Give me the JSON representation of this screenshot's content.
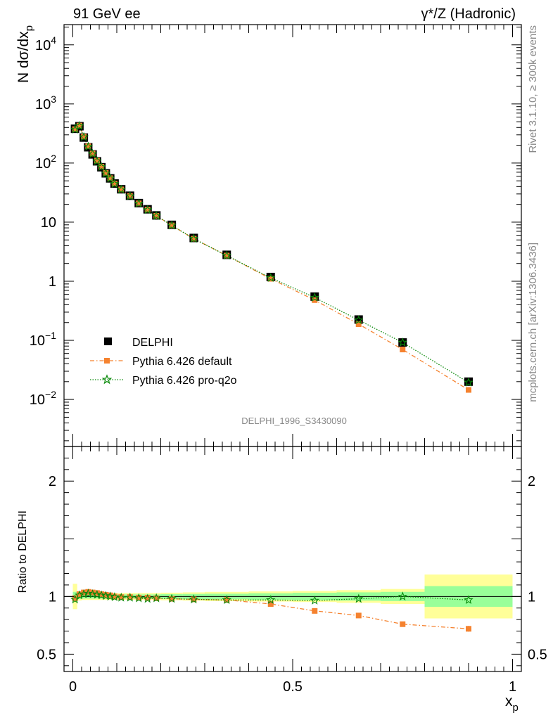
{
  "chart_data": [
    {
      "type": "scatter",
      "panel": "main",
      "title_left": "91 GeV ee",
      "title_right_prefix": "γ*/Z",
      "title_right_suffix": "(Hadronic)",
      "ylabel": "N dσ/dx_p",
      "yscale": "log",
      "ylim": [
        0.0016,
        22000
      ],
      "xlim": [
        -0.02,
        1.02
      ],
      "ytick_labels": [
        "10^-2",
        "10^-1",
        "1",
        "10",
        "10^2",
        "10^3",
        "10^4"
      ],
      "yticks": [
        0.01,
        0.1,
        1,
        10,
        100,
        1000,
        10000
      ],
      "analysis_id": "DELPHI_1996_S3430090",
      "side_label_top": "Rivet 3.1.10, ≥ 300k events",
      "side_label_bottom": "mcplots.cern.ch [arXiv:1306.3436]",
      "legend": [
        "DELPHI",
        "Pythia 6.426 default",
        "Pythia 6.426 pro-q2o"
      ],
      "series": [
        {
          "name": "DELPHI",
          "marker": "square",
          "x": [
            0.005,
            0.015,
            0.025,
            0.035,
            0.045,
            0.055,
            0.065,
            0.075,
            0.085,
            0.095,
            0.11,
            0.13,
            0.15,
            0.17,
            0.19,
            0.225,
            0.275,
            0.35,
            0.45,
            0.55,
            0.65,
            0.75,
            0.9
          ],
          "y": [
            380,
            420,
            270,
            185,
            140,
            107,
            85,
            67,
            55,
            45,
            36,
            28,
            21,
            16.5,
            13,
            9,
            5.4,
            2.8,
            1.18,
            0.55,
            0.225,
            0.092,
            0.02
          ]
        },
        {
          "name": "Pythia 6.426 default",
          "marker": "filled-square",
          "x": [
            0.005,
            0.015,
            0.025,
            0.035,
            0.045,
            0.055,
            0.065,
            0.075,
            0.085,
            0.095,
            0.11,
            0.13,
            0.15,
            0.17,
            0.19,
            0.225,
            0.275,
            0.35,
            0.45,
            0.55,
            0.65,
            0.75,
            0.9
          ],
          "y": [
            375,
            430,
            280,
            193,
            145,
            110,
            87,
            68,
            55.5,
            45,
            35.8,
            27.8,
            20.8,
            16.3,
            12.8,
            8.8,
            5.25,
            2.72,
            1.1,
            0.48,
            0.188,
            0.07,
            0.0145
          ]
        },
        {
          "name": "Pythia 6.426 pro-q2o",
          "marker": "star",
          "x": [
            0.005,
            0.015,
            0.025,
            0.035,
            0.045,
            0.055,
            0.065,
            0.075,
            0.085,
            0.095,
            0.11,
            0.13,
            0.15,
            0.17,
            0.19,
            0.225,
            0.275,
            0.35,
            0.45,
            0.55,
            0.65,
            0.75,
            0.9
          ],
          "y": [
            370,
            425,
            276,
            190,
            143,
            108,
            86,
            67,
            55,
            44.5,
            35.5,
            27.6,
            20.7,
            16.1,
            12.8,
            8.8,
            5.25,
            2.72,
            1.14,
            0.53,
            0.22,
            0.092,
            0.0194
          ]
        }
      ]
    },
    {
      "type": "line",
      "panel": "ratio",
      "ylabel": "Ratio to DELPHI",
      "xlabel": "x_p",
      "ylim": [
        0.35,
        2.3
      ],
      "xlim": [
        -0.02,
        1.02
      ],
      "ytick_labels": [
        "0.5",
        "1",
        "2"
      ],
      "yticks": [
        0.5,
        1,
        2
      ],
      "xtick_labels": [
        "0",
        "0.5",
        "1"
      ],
      "xticks": [
        0,
        0.5,
        1
      ],
      "uncertainty_bands": {
        "bins": [
          [
            0.0,
            0.01
          ],
          [
            0.01,
            0.02
          ],
          [
            0.02,
            0.03
          ],
          [
            0.03,
            0.04
          ],
          [
            0.04,
            0.05
          ],
          [
            0.05,
            0.06
          ],
          [
            0.06,
            0.07
          ],
          [
            0.07,
            0.08
          ],
          [
            0.08,
            0.09
          ],
          [
            0.09,
            0.1
          ],
          [
            0.1,
            0.12
          ],
          [
            0.12,
            0.14
          ],
          [
            0.14,
            0.16
          ],
          [
            0.16,
            0.18
          ],
          [
            0.18,
            0.2
          ],
          [
            0.2,
            0.25
          ],
          [
            0.25,
            0.3
          ],
          [
            0.3,
            0.4
          ],
          [
            0.4,
            0.5
          ],
          [
            0.5,
            0.6
          ],
          [
            0.6,
            0.7
          ],
          [
            0.7,
            0.8
          ],
          [
            0.8,
            1.0
          ]
        ],
        "stat": [
          0.04,
          0.02,
          0.018,
          0.018,
          0.018,
          0.018,
          0.018,
          0.018,
          0.018,
          0.018,
          0.018,
          0.018,
          0.018,
          0.018,
          0.018,
          0.02,
          0.022,
          0.024,
          0.028,
          0.032,
          0.036,
          0.04,
          0.09
        ],
        "total": [
          0.11,
          0.035,
          0.03,
          0.03,
          0.03,
          0.03,
          0.03,
          0.03,
          0.03,
          0.03,
          0.03,
          0.03,
          0.03,
          0.03,
          0.03,
          0.033,
          0.036,
          0.04,
          0.044,
          0.048,
          0.055,
          0.065,
          0.19
        ]
      },
      "series": [
        {
          "name": "Pythia 6.426 default",
          "x": [
            0.005,
            0.015,
            0.025,
            0.035,
            0.045,
            0.055,
            0.065,
            0.075,
            0.085,
            0.095,
            0.11,
            0.13,
            0.15,
            0.17,
            0.19,
            0.225,
            0.275,
            0.35,
            0.45,
            0.55,
            0.65,
            0.75,
            0.9
          ],
          "y": [
            0.985,
            1.02,
            1.035,
            1.04,
            1.035,
            1.03,
            1.02,
            1.015,
            1.01,
            1.0,
            0.995,
            0.995,
            0.99,
            0.99,
            0.985,
            0.98,
            0.975,
            0.97,
            0.935,
            0.875,
            0.835,
            0.76,
            0.72
          ],
          "yerr": [
            0,
            0,
            0,
            0,
            0,
            0,
            0,
            0,
            0,
            0,
            0,
            0,
            0,
            0,
            0,
            0,
            0,
            0,
            0,
            0,
            0,
            0.012,
            0.025
          ]
        },
        {
          "name": "Pythia 6.426 pro-q2o",
          "x": [
            0.005,
            0.015,
            0.025,
            0.035,
            0.045,
            0.055,
            0.065,
            0.075,
            0.085,
            0.095,
            0.11,
            0.13,
            0.15,
            0.17,
            0.19,
            0.225,
            0.275,
            0.35,
            0.45,
            0.55,
            0.65,
            0.75,
            0.9
          ],
          "y": [
            0.975,
            1.01,
            1.02,
            1.025,
            1.02,
            1.015,
            1.01,
            1.005,
            1.0,
            0.995,
            0.99,
            0.99,
            0.985,
            0.98,
            0.985,
            0.98,
            0.975,
            0.97,
            0.97,
            0.965,
            0.98,
            1.0,
            0.97
          ],
          "yerr": [
            0,
            0,
            0,
            0,
            0,
            0,
            0,
            0,
            0,
            0,
            0,
            0,
            0,
            0,
            0,
            0,
            0,
            0,
            0,
            0,
            0,
            0,
            0
          ]
        }
      ]
    }
  ],
  "colors": {
    "data": "#000000",
    "default": "#f5822f",
    "proq2o": "#0a8a0a",
    "band_stat": "#99ff99",
    "band_total": "#ffff99",
    "axis": "#000000",
    "gray_text": "#888888"
  }
}
